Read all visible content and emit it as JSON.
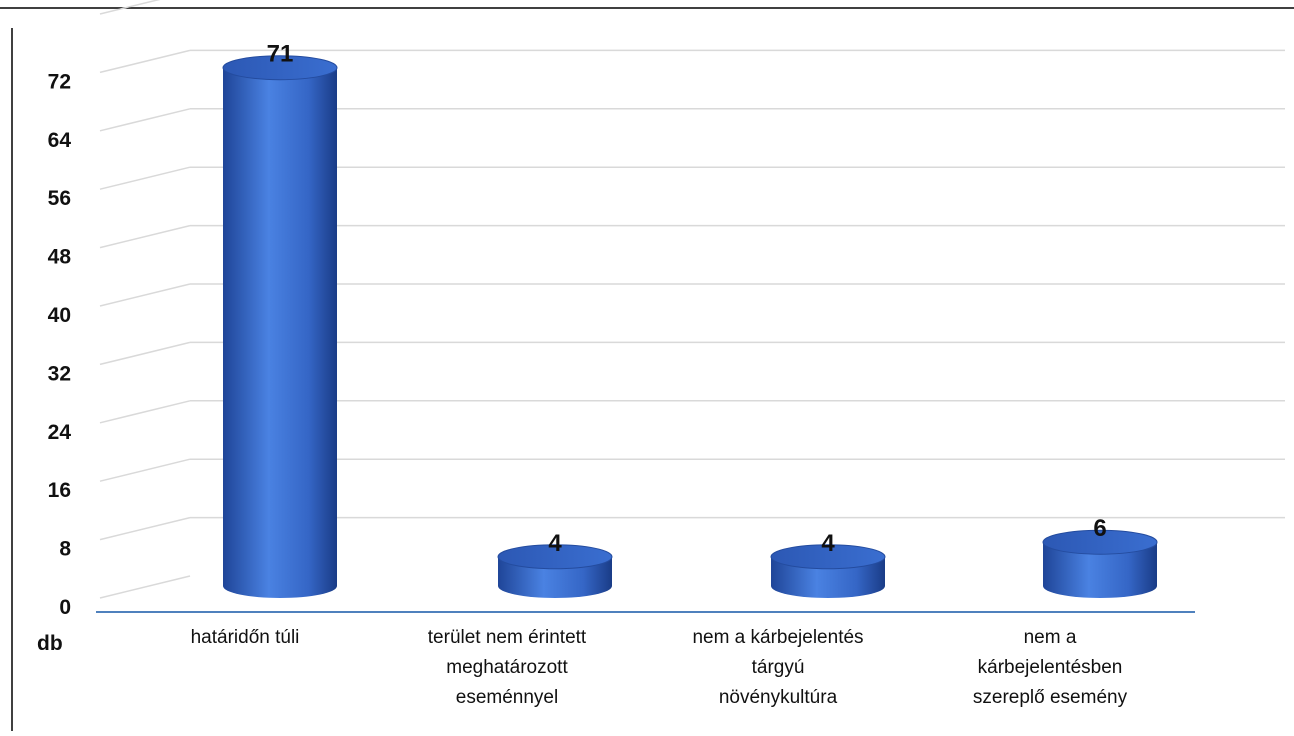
{
  "chart_data": {
    "type": "bar",
    "style": "3d-cylinder",
    "categories": [
      [
        "határidőn túli"
      ],
      [
        "terület nem érintett",
        "meghatározott",
        "eseménnyel"
      ],
      [
        "nem a kárbejelentés",
        "tárgyú",
        "növénykultúra"
      ],
      [
        "nem a",
        "kárbejelentésben",
        "szereplő esemény"
      ]
    ],
    "values": [
      71,
      4,
      4,
      6
    ],
    "data_labels": [
      "71",
      "4",
      "4",
      "6"
    ],
    "y_ticks": [
      0,
      8,
      16,
      24,
      32,
      40,
      48,
      56,
      64,
      72
    ],
    "ylim": [
      0,
      80
    ],
    "yunit": "db",
    "grid": true,
    "legend": "none",
    "bar_color": "#3a6ed0",
    "axis_color": "#4f81bd",
    "grid_color": "#d9d9d9"
  }
}
